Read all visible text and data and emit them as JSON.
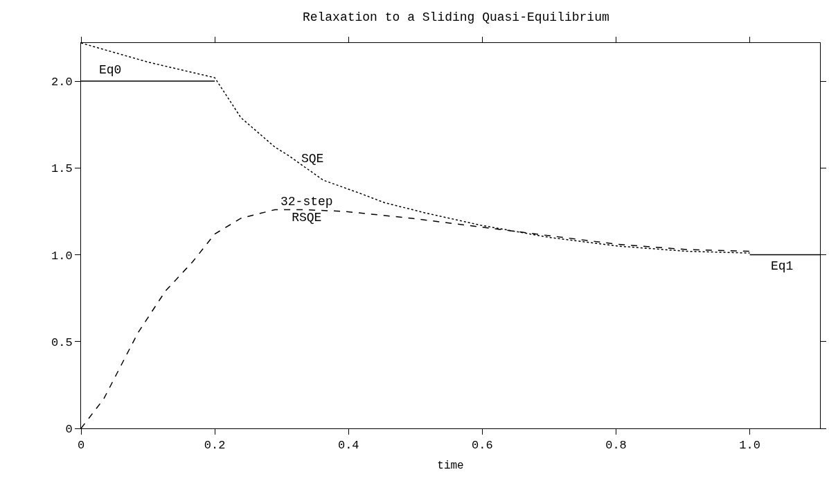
{
  "chart_data": {
    "type": "line",
    "title": "Relaxation to a Sliding Quasi-Equilibrium",
    "xlabel": "time",
    "xlim": [
      0,
      1.105
    ],
    "xticks": [
      {
        "value": 0,
        "label": "0"
      },
      {
        "value": 0.2,
        "label": "0.2"
      },
      {
        "value": 0.4,
        "label": "0.4"
      },
      {
        "value": 0.6,
        "label": "0.6"
      },
      {
        "value": 0.8,
        "label": "0.8"
      },
      {
        "value": 1,
        "label": "1.0"
      }
    ],
    "ylim": [
      0,
      2.22
    ],
    "yticks": [
      {
        "value": 0,
        "label": "0"
      },
      {
        "value": 0.5,
        "label": "0.5"
      },
      {
        "value": 1,
        "label": "1.0"
      },
      {
        "value": 1.5,
        "label": "1.5"
      },
      {
        "value": 2,
        "label": "2.0"
      }
    ],
    "grid": false,
    "legend": false,
    "marker": "none",
    "series": [
      {
        "name": "Eq0",
        "color": "#000000",
        "line_style": "solid",
        "x": [
          0,
          0.2
        ],
        "values": [
          2.0,
          2.0
        ]
      },
      {
        "name": "SQE",
        "color": "#000000",
        "line_style": "dotted",
        "x": [
          0,
          0.1,
          0.2,
          0.239,
          0.29,
          0.311,
          0.362,
          0.413,
          0.454,
          0.516,
          0.598,
          0.7,
          0.803,
          0.906,
          1.0
        ],
        "values": [
          2.22,
          2.11,
          2.02,
          1.79,
          1.62,
          1.57,
          1.43,
          1.36,
          1.3,
          1.24,
          1.17,
          1.1,
          1.05,
          1.02,
          1.01
        ]
      },
      {
        "name": "32-step RSQE",
        "color": "#000000",
        "line_style": "dashed",
        "x": [
          0,
          0.034,
          0.085,
          0.126,
          0.167,
          0.2,
          0.239,
          0.29,
          0.331,
          0.393,
          0.495,
          0.598,
          0.7,
          0.803,
          0.906,
          1.0
        ],
        "values": [
          0,
          0.17,
          0.55,
          0.79,
          0.96,
          1.12,
          1.21,
          1.26,
          1.26,
          1.25,
          1.21,
          1.16,
          1.11,
          1.06,
          1.03,
          1.02
        ]
      },
      {
        "name": "Eq1",
        "color": "#000000",
        "line_style": "solid",
        "x": [
          1.0,
          1.105
        ],
        "values": [
          1.0,
          1.0
        ]
      }
    ]
  }
}
